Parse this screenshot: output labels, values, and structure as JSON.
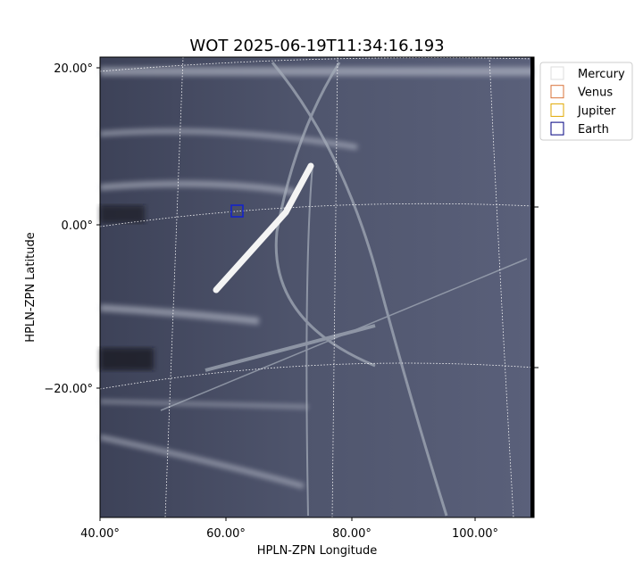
{
  "title": "WOT 2025-06-19T11:34:16.193",
  "x_axis": {
    "label": "HPLN-ZPN Longitude",
    "ticks": [
      "40.00°",
      "60.00°",
      "80.00°",
      "100.00°"
    ]
  },
  "y_axis": {
    "label": "HPLN-ZPN Latitude",
    "ticks": [
      "20.00°",
      "0.00°",
      "−20.00°"
    ]
  },
  "legend": [
    {
      "name": "Mercury",
      "color": "#dddddd"
    },
    {
      "name": "Venus",
      "color": "#d9733a"
    },
    {
      "name": "Jupiter",
      "color": "#e0a800"
    },
    {
      "name": "Earth",
      "color": "#000080"
    }
  ]
}
